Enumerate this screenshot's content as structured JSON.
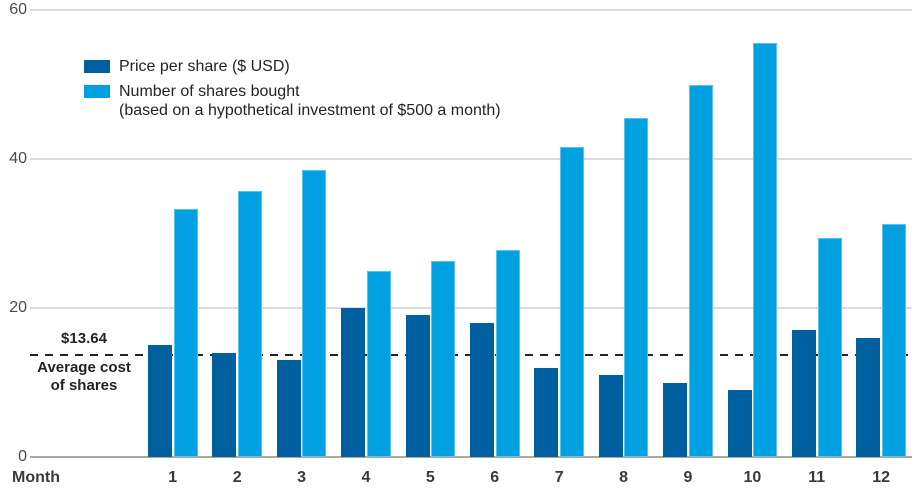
{
  "chart_data": {
    "type": "bar",
    "title": "",
    "xlabel": "Month",
    "ylabel": "",
    "ylim": [
      0,
      60
    ],
    "y_ticks": [
      0,
      20,
      40,
      60
    ],
    "grid": "horizontal",
    "legend_position": "top-left",
    "categories": [
      "1",
      "2",
      "3",
      "4",
      "5",
      "6",
      "7",
      "8",
      "9",
      "10",
      "11",
      "12"
    ],
    "series": [
      {
        "name": "Price per share ($ USD)",
        "color": "#005F9E",
        "values": [
          15,
          14,
          13,
          20,
          19,
          18,
          12,
          11,
          10,
          9,
          17,
          16
        ]
      },
      {
        "name": "Number of shares bought (based on a hypothetical investment of $500 a month)",
        "color": "#00A0E1",
        "values": [
          33.33,
          35.71,
          38.46,
          25,
          26.32,
          27.78,
          41.67,
          45.45,
          50,
          55.56,
          29.41,
          31.25
        ]
      }
    ],
    "reference_line": {
      "value": 13.64,
      "label_value": "$13.64",
      "label_caption": "Average cost\nof shares",
      "style": "dashed",
      "color": "#232323"
    }
  },
  "legend": {
    "price_label": "Price per share ($ USD)",
    "shares_label_line1": "Number of shares bought",
    "shares_label_line2": "(based on a hypothetical investment of $500 a month)"
  },
  "axis": {
    "x_title": "Month"
  },
  "annotation": {
    "value": "$13.64",
    "caption": "Average cost\nof shares"
  },
  "colors": {
    "price_bar": "#005F9E",
    "shares_bar": "#00A0E1",
    "gridline": "#DBDBDB",
    "axis_line": "#A8A8A8",
    "dashed_line": "#232323",
    "tick_text": "#4A4A4A",
    "label_text": "#232323"
  }
}
